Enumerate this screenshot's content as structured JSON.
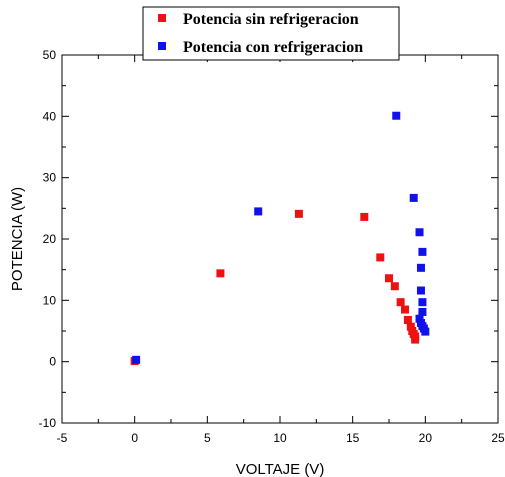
{
  "chart_data": {
    "type": "scatter",
    "xlabel": "VOLTAJE (V)",
    "ylabel": "POTENCIA (W)",
    "xlim": [
      -5,
      25
    ],
    "ylim": [
      -10,
      50
    ],
    "x_ticks": [
      -5,
      0,
      5,
      10,
      15,
      20,
      25
    ],
    "y_ticks": [
      -10,
      0,
      10,
      20,
      30,
      40,
      50
    ],
    "grid": false,
    "legend_position": "top-center",
    "series": [
      {
        "name": "Potencia sin refrigeracion",
        "color": "#ee1111",
        "marker": "square",
        "points": [
          [
            0.0,
            0.1
          ],
          [
            5.9,
            14.4
          ],
          [
            11.3,
            24.1
          ],
          [
            15.8,
            23.6
          ],
          [
            16.9,
            17.0
          ],
          [
            17.5,
            13.6
          ],
          [
            17.9,
            12.3
          ],
          [
            18.3,
            9.7
          ],
          [
            18.6,
            8.5
          ],
          [
            18.8,
            6.8
          ],
          [
            19.0,
            5.7
          ],
          [
            19.1,
            5.0
          ],
          [
            19.2,
            4.5
          ],
          [
            19.3,
            4.1
          ],
          [
            19.3,
            3.6
          ]
        ]
      },
      {
        "name": "Potencia con  refrigeracion",
        "color": "#1111ee",
        "marker": "square",
        "points": [
          [
            0.1,
            0.3
          ],
          [
            8.5,
            24.5
          ],
          [
            18.0,
            40.1
          ],
          [
            19.2,
            26.7
          ],
          [
            19.6,
            21.1
          ],
          [
            19.8,
            17.9
          ],
          [
            19.7,
            15.3
          ],
          [
            19.7,
            11.6
          ],
          [
            19.8,
            9.7
          ],
          [
            19.8,
            8.1
          ],
          [
            19.6,
            7.0
          ],
          [
            19.7,
            6.3
          ],
          [
            19.8,
            5.8
          ],
          [
            19.9,
            5.4
          ],
          [
            20.0,
            4.9
          ]
        ]
      }
    ]
  }
}
